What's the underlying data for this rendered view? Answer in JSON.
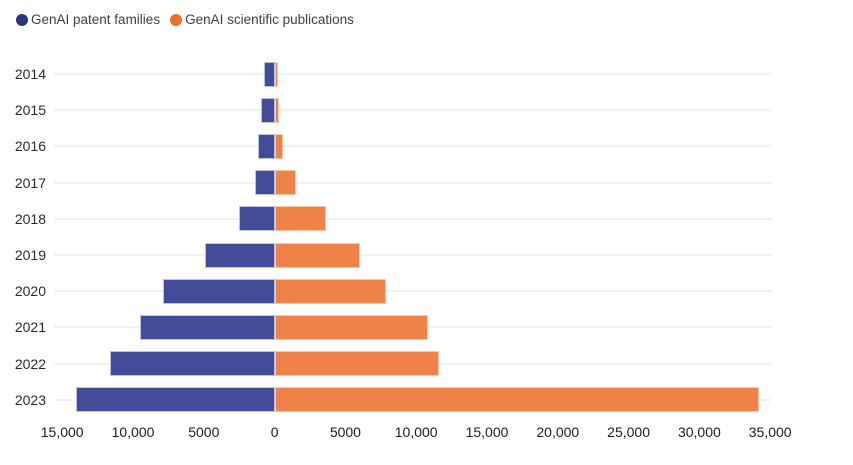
{
  "chart_data": {
    "type": "bar",
    "variant": "diverging-horizontal",
    "title": "",
    "categories": [
      "2014",
      "2015",
      "2016",
      "2017",
      "2018",
      "2019",
      "2020",
      "2021",
      "2022",
      "2023"
    ],
    "series": [
      {
        "name": "GenAI patent families",
        "side": "left",
        "color": "#424C99",
        "border_color": "#BCC2E2",
        "legend_marker_color": "#2B3488",
        "values": [
          730,
          950,
          1200,
          1400,
          2500,
          4900,
          7900,
          9500,
          11600,
          14000
        ]
      },
      {
        "name": "GenAI scientific publications",
        "side": "right",
        "color": "#EE8248",
        "border_color": "#F7C9A8",
        "legend_marker_color": "#ED7128",
        "values": [
          200,
          300,
          550,
          1500,
          3600,
          6000,
          7800,
          10800,
          11600,
          34200
        ]
      }
    ],
    "x_axis": {
      "tick_values": [
        -15000,
        -10000,
        -5000,
        0,
        5000,
        10000,
        15000,
        20000,
        25000,
        30000,
        35000
      ],
      "tick_labels": [
        "15,000",
        "10,000",
        "5000",
        "0",
        "5000",
        "10,000",
        "15,000",
        "20,000",
        "25,000",
        "30,000",
        "35,000"
      ]
    },
    "xlim": [
      -15500,
      35700
    ],
    "grid": "horizontal",
    "legend_position": "top-left"
  }
}
